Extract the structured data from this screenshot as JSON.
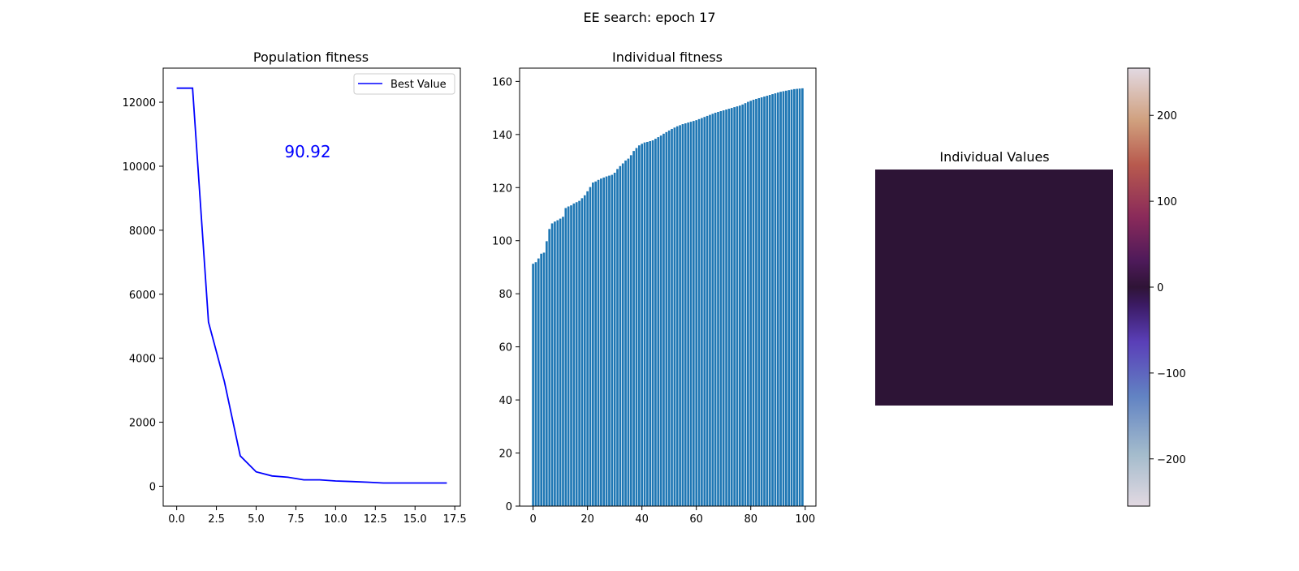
{
  "figure": {
    "title": "EE search: epoch 17"
  },
  "chart_data": [
    {
      "type": "line",
      "title": "Population fitness",
      "xlabel": "",
      "ylabel": "",
      "annotation": "90.92",
      "legend": {
        "placement": "top-right",
        "entries": [
          "Best Value"
        ]
      },
      "xlim": [
        -0.85,
        17.85
      ],
      "ylim": [
        -622,
        13066
      ],
      "xticks": [
        0,
        2.5,
        5,
        7.5,
        10,
        12.5,
        15,
        17.5
      ],
      "xtick_labels": [
        "0.0",
        "2.5",
        "5.0",
        "7.5",
        "10.0",
        "12.5",
        "15.0",
        "17.5"
      ],
      "yticks": [
        0,
        2000,
        4000,
        6000,
        8000,
        10000,
        12000
      ],
      "series": [
        {
          "name": "Best Value",
          "color": "#0000ff",
          "x": [
            0,
            1,
            2,
            3,
            4,
            5,
            6,
            7,
            8,
            9,
            10,
            11,
            12,
            13,
            14,
            15,
            16,
            17
          ],
          "y": [
            12440,
            12440,
            5130,
            3270,
            950,
            450,
            320,
            280,
            200,
            200,
            165,
            145,
            125,
            100,
            100,
            100,
            100,
            100
          ]
        }
      ],
      "grid": false
    },
    {
      "type": "bar",
      "title": "Individual fitness",
      "xlabel": "",
      "ylabel": "",
      "color": "#1f77b4",
      "xlim": [
        -4.95,
        103.95
      ],
      "ylim": [
        0,
        165
      ],
      "xticks": [
        0,
        20,
        40,
        60,
        80,
        100
      ],
      "yticks": [
        0,
        20,
        40,
        60,
        80,
        100,
        120,
        140,
        160
      ],
      "categories_count": 100,
      "values": [
        91.3,
        91.9,
        93.3,
        95.1,
        95.5,
        99.8,
        104.4,
        106.5,
        107.2,
        107.7,
        108.3,
        109.0,
        112.3,
        112.9,
        113.3,
        114.0,
        114.5,
        115.0,
        116.0,
        117.1,
        118.6,
        120.2,
        121.9,
        122.3,
        122.9,
        123.4,
        123.8,
        124.2,
        124.5,
        124.8,
        125.6,
        127.0,
        128.1,
        129.1,
        130.2,
        130.9,
        132.2,
        133.8,
        134.9,
        135.9,
        136.5,
        137.0,
        137.2,
        137.5,
        137.8,
        138.4,
        139.0,
        139.6,
        140.3,
        140.9,
        141.5,
        142.1,
        142.6,
        143.1,
        143.5,
        143.9,
        144.2,
        144.5,
        144.8,
        145.1,
        145.4,
        145.8,
        146.2,
        146.6,
        147.0,
        147.4,
        147.8,
        148.2,
        148.5,
        148.8,
        149.1,
        149.4,
        149.7,
        150.0,
        150.3,
        150.6,
        150.9,
        151.3,
        151.8,
        152.3,
        152.7,
        153.1,
        153.4,
        153.7,
        154.0,
        154.3,
        154.6,
        154.9,
        155.2,
        155.5,
        155.8,
        156.1,
        156.3,
        156.5,
        156.7,
        156.9,
        157.1,
        157.2,
        157.3,
        157.4
      ],
      "grid": false
    },
    {
      "type": "heatmap",
      "title": "Individual Values",
      "fill_color": "#2d1436",
      "colorbar": {
        "range": [
          -255,
          255
        ],
        "ticks": [
          -200,
          -100,
          0,
          100,
          200
        ],
        "tick_labels": [
          "−200",
          "−100",
          "0",
          "100",
          "200"
        ]
      }
    }
  ]
}
